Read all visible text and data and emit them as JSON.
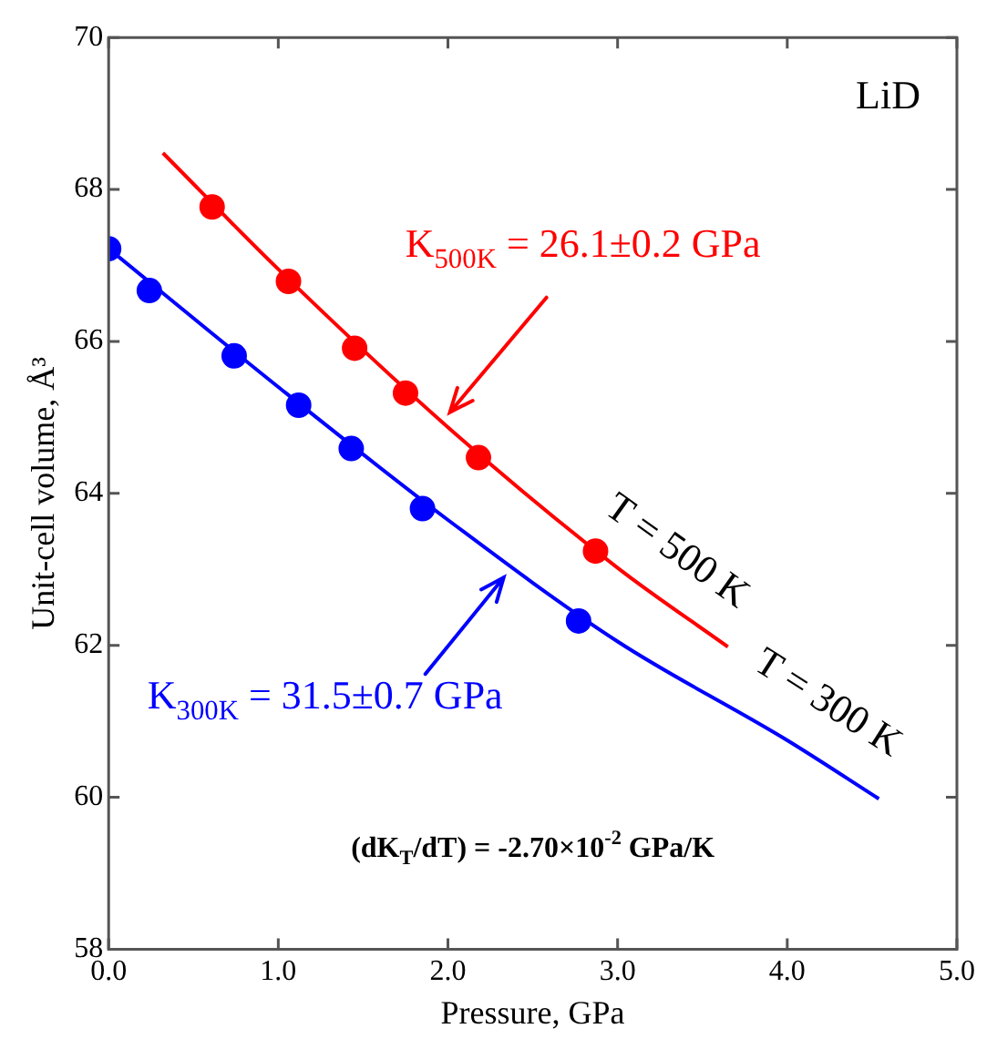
{
  "chart_data": {
    "type": "scatter",
    "xlabel": "Pressure, GPa",
    "ylabel": "Unit-cell volume, Å³",
    "xlim": [
      0,
      5
    ],
    "ylim": [
      58,
      70
    ],
    "xticks": [
      {
        "value": 0,
        "label": "0.0"
      },
      {
        "value": 1,
        "label": "1.0"
      },
      {
        "value": 2,
        "label": "2.0"
      },
      {
        "value": 3,
        "label": "3.0"
      },
      {
        "value": 4,
        "label": "4.0"
      },
      {
        "value": 5,
        "label": "5.0"
      }
    ],
    "yticks": [
      58,
      60,
      62,
      64,
      66,
      68,
      70
    ],
    "grid": false,
    "legend": false,
    "series": [
      {
        "type": "line",
        "marker": "none",
        "name": "T = 500 K",
        "color": "#ff0000",
        "x": [
          0.32,
          1.0,
          2.0,
          3.0,
          3.65
        ],
        "values": [
          68.48,
          66.95,
          64.87,
          63.02,
          61.98
        ]
      },
      {
        "type": "line",
        "marker": "none",
        "name": "T = 300 K",
        "color": "#0000ff",
        "x": [
          0,
          1.0,
          2.0,
          3.0,
          4.0,
          4.54
        ],
        "values": [
          67.22,
          65.4,
          63.65,
          62.05,
          60.75,
          59.98
        ]
      },
      {
        "marker": "circle",
        "color": "#ff0000",
        "x": [
          0.61,
          1.06,
          1.45,
          1.75,
          2.18,
          2.87
        ],
        "values": [
          67.77,
          66.79,
          65.91,
          65.32,
          64.47,
          63.24
        ]
      },
      {
        "marker": "circle",
        "color": "#0000ff",
        "x": [
          0,
          0.24,
          0.74,
          1.12,
          1.43,
          1.85,
          2.77
        ],
        "values": [
          67.22,
          66.67,
          65.81,
          65.16,
          64.59,
          63.8,
          62.32
        ]
      }
    ],
    "annotations": [
      "LiD",
      {
        "text": "K$_{500K}$ = 26.1±0.2 GPa",
        "x": 1.99,
        "y": 65.02
      },
      {
        "text": "K$_{300K}$ = 31.5±0.7 GPa",
        "x": 2.35,
        "y": 62.94
      },
      "(dK$_{T}$/dT) = -2.70×10$^{-2}$ GPa/K"
    ]
  }
}
